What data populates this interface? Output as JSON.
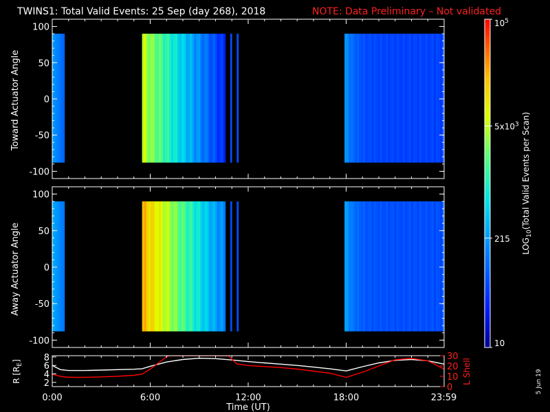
{
  "title": {
    "main": "TWINS1: Total Valid Events: 25 Sep (day 268), 2018",
    "note": "NOTE: Data Preliminary – Not validated"
  },
  "stamp": "5 Jun 19",
  "chart_data": [
    {
      "type": "heatmap",
      "panel": "top",
      "ylabel": "Toward Actuator Angle",
      "ylim": [
        -110,
        110
      ],
      "yticks": [
        "100",
        "50",
        "0",
        "-50",
        "-100"
      ],
      "data_range_y": [
        -88,
        90
      ],
      "x_unit": "hours UT",
      "xlim": [
        0,
        24
      ],
      "blocks": [
        {
          "x0": 0.0,
          "x1": 0.75,
          "level": 0.32
        },
        {
          "x0": 5.5,
          "x1": 10.6,
          "level": 0.55
        },
        {
          "x0": 10.9,
          "x1": 11.0,
          "level": 0.2
        },
        {
          "x0": 11.3,
          "x1": 11.4,
          "level": 0.2
        },
        {
          "x0": 17.9,
          "x1": 24.0,
          "level": 0.18
        }
      ]
    },
    {
      "type": "heatmap",
      "panel": "middle",
      "ylabel": "Away Actuator Angle",
      "ylim": [
        -110,
        110
      ],
      "yticks": [
        "100",
        "50",
        "0",
        "-50",
        "-100"
      ],
      "data_range_y": [
        -88,
        90
      ],
      "x_unit": "hours UT",
      "xlim": [
        0,
        24
      ],
      "blocks": [
        {
          "x0": 0.0,
          "x1": 0.75,
          "level": 0.35
        },
        {
          "x0": 5.5,
          "x1": 10.6,
          "level": 0.7
        },
        {
          "x0": 10.9,
          "x1": 11.0,
          "level": 0.2
        },
        {
          "x0": 11.3,
          "x1": 11.4,
          "level": 0.2
        },
        {
          "x0": 17.9,
          "x1": 24.0,
          "level": 0.2
        }
      ]
    },
    {
      "type": "line",
      "panel": "bottom",
      "ylabel": "R [R",
      "ylabel_sub": "E",
      "ylabel_right": "L Shell",
      "xlabel": "Time (UT)",
      "xticks": [
        "0:00",
        "6:00",
        "12:00",
        "18:00",
        "23:59"
      ],
      "xtick_hours": [
        0,
        6,
        12,
        18,
        23.98
      ],
      "yticks_left": [
        "8",
        "6",
        "4",
        "2"
      ],
      "ylim_left": [
        1,
        8.3
      ],
      "yticks_right": [
        "30",
        "20",
        "10",
        "0"
      ],
      "ylim_right": [
        0,
        30
      ],
      "series": [
        {
          "axis": "left",
          "color": "#ffffff",
          "x": [
            0,
            0.5,
            1,
            2,
            3,
            4,
            5,
            5.5,
            6,
            7,
            8,
            9,
            10,
            11,
            12,
            13,
            14,
            15,
            16,
            17,
            18,
            19,
            20,
            21,
            22,
            23,
            24
          ],
          "y": [
            6.0,
            5.0,
            4.8,
            4.8,
            4.9,
            5.0,
            5.1,
            5.2,
            5.8,
            6.8,
            7.4,
            7.7,
            7.6,
            7.3,
            6.9,
            6.6,
            6.3,
            6.0,
            5.6,
            5.2,
            4.7,
            5.7,
            6.6,
            7.2,
            7.4,
            7.1,
            6.3
          ]
        },
        {
          "axis": "right",
          "color": "#ff0000",
          "x": [
            0,
            0.5,
            1,
            2,
            3,
            4,
            5,
            5.5,
            6,
            6.5,
            7,
            7.2,
            10.8,
            11.3,
            12,
            13,
            14,
            15,
            16,
            17,
            18,
            19,
            20,
            21,
            22,
            23,
            24
          ],
          "y": [
            12,
            10,
            9,
            9,
            9.5,
            10,
            11,
            12,
            17,
            23,
            29,
            30,
            30,
            22,
            20.5,
            19.5,
            18.5,
            17,
            15,
            13,
            9,
            14,
            20,
            26,
            27.5,
            25,
            17
          ]
        }
      ]
    },
    {
      "type": "colorbar",
      "label": "LOG",
      "label_sub": "10",
      "label_rest": "(Total Valid Events per Scan)",
      "tick_values": [
        10,
        215,
        5000,
        100000
      ],
      "tick_labels": [
        {
          "text": "10"
        },
        {
          "text": "215"
        },
        {
          "text": "5x10",
          "sup": "3"
        },
        {
          "text": "10",
          "sup": "5"
        }
      ]
    }
  ]
}
